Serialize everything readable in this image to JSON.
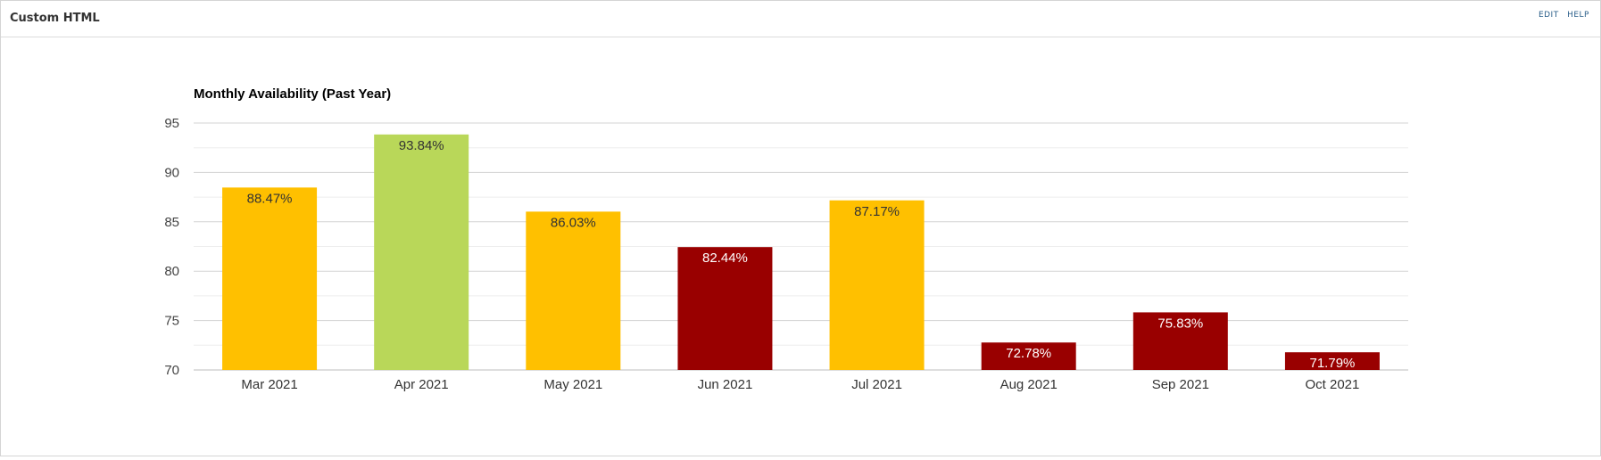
{
  "panel": {
    "title": "Custom HTML",
    "actions": {
      "edit": "EDIT",
      "help": "HELP"
    }
  },
  "chart_data": {
    "type": "bar",
    "title": "Monthly Availability (Past Year)",
    "xlabel": "",
    "ylabel": "",
    "ylim": [
      70,
      95
    ],
    "yticks": [
      70,
      75,
      80,
      85,
      90,
      95
    ],
    "grid": true,
    "categories": [
      "Mar 2021",
      "Apr 2021",
      "May 2021",
      "Jun 2021",
      "Jul 2021",
      "Aug 2021",
      "Sep 2021",
      "Oct 2021"
    ],
    "values": [
      88.47,
      93.84,
      86.03,
      82.44,
      87.17,
      72.78,
      75.83,
      71.79
    ],
    "data_labels": [
      "88.47%",
      "93.84%",
      "86.03%",
      "82.44%",
      "87.17%",
      "72.78%",
      "75.83%",
      "71.79%"
    ],
    "bar_colors": [
      "#ffc000",
      "#b9d759",
      "#ffc000",
      "#990000",
      "#ffc000",
      "#990000",
      "#990000",
      "#990000"
    ],
    "label_colors": [
      "#333333",
      "#333333",
      "#333333",
      "#ffffff",
      "#333333",
      "#ffffff",
      "#ffffff",
      "#ffffff"
    ]
  }
}
